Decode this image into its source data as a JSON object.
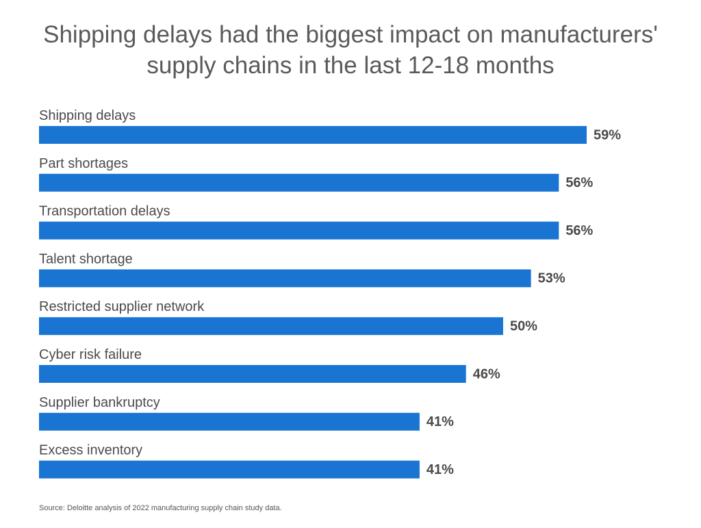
{
  "chart_data": {
    "type": "bar",
    "orientation": "horizontal",
    "title": "Shipping delays had the biggest impact on manufacturers' supply chains in the last 12-18 months",
    "categories": [
      "Shipping delays",
      "Part shortages",
      "Transportation delays",
      "Talent shortage",
      "Restricted supplier network",
      "Cyber risk failure",
      "Supplier bankruptcy",
      "Excess inventory"
    ],
    "values": [
      59,
      56,
      56,
      53,
      50,
      46,
      41,
      41
    ],
    "value_labels": [
      "59%",
      "56%",
      "56%",
      "53%",
      "50%",
      "46%",
      "41%",
      "41%"
    ],
    "color": "#1a75d2",
    "source": "Source: Deloitte analysis of 2022 manufacturing supply chain study data."
  }
}
